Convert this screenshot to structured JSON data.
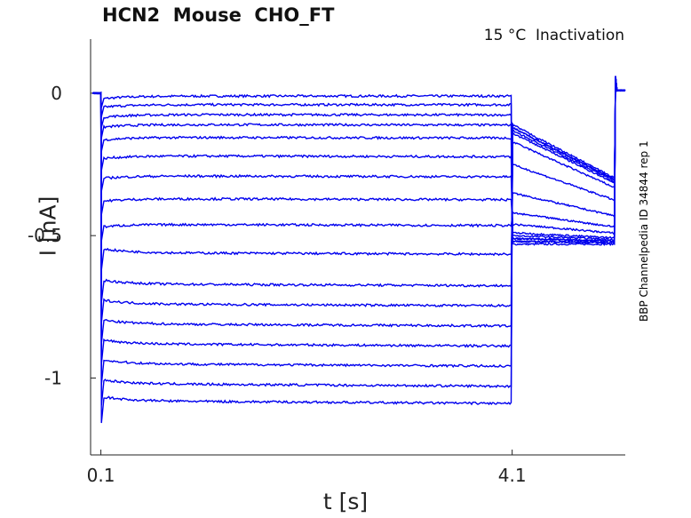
{
  "chart_data": {
    "type": "line",
    "title": "HCN2  Mouse  CHO_FT",
    "subtitle": "15 °C  Inactivation",
    "xlabel": "t [s]",
    "ylabel": "I [nA]",
    "side_label": "BBP Channelpedia ID 34844 rep 1",
    "x_ticks": [
      0.1,
      4.1
    ],
    "x_tick_labels": [
      "0.1",
      "4.1"
    ],
    "y_ticks": [
      0,
      -0.5,
      -1
    ],
    "y_tick_labels": [
      "0",
      "-0.5",
      "-1"
    ],
    "xlim": [
      0.0,
      5.2
    ],
    "ylim": [
      -1.27,
      0.19
    ],
    "grid": false,
    "legend": "none",
    "line_color": "#0000ee",
    "step_times": [
      0.1,
      4.1,
      5.1
    ],
    "holding_current": 0.0,
    "series": [
      {
        "step1_current": -0.01,
        "step2_current": -0.53
      },
      {
        "step1_current": -0.04,
        "step2_current": -0.52
      },
      {
        "step1_current": -0.075,
        "step2_current": -0.52
      },
      {
        "step1_current": -0.11,
        "step2_current": -0.51
      },
      {
        "step1_current": -0.155,
        "step2_current": -0.51
      },
      {
        "step1_current": -0.22,
        "step2_current": -0.5
      },
      {
        "step1_current": -0.29,
        "step2_current": -0.49
      },
      {
        "step1_current": -0.37,
        "step2_current": -0.46
      },
      {
        "step1_current": -0.46,
        "step2_current": -0.42
      },
      {
        "step1_current": -0.56,
        "step2_current": -0.35
      },
      {
        "step1_current": -0.67,
        "step2_current": -0.25
      },
      {
        "step1_current": -0.74,
        "step2_current": -0.17
      },
      {
        "step1_current": -0.81,
        "step2_current": -0.14
      },
      {
        "step1_current": -0.88,
        "step2_current": -0.13
      },
      {
        "step1_current": -0.95,
        "step2_current": -0.12
      },
      {
        "step1_current": -1.02,
        "step2_current": -0.12
      },
      {
        "step1_current": -1.08,
        "step2_current": -0.11
      }
    ]
  }
}
